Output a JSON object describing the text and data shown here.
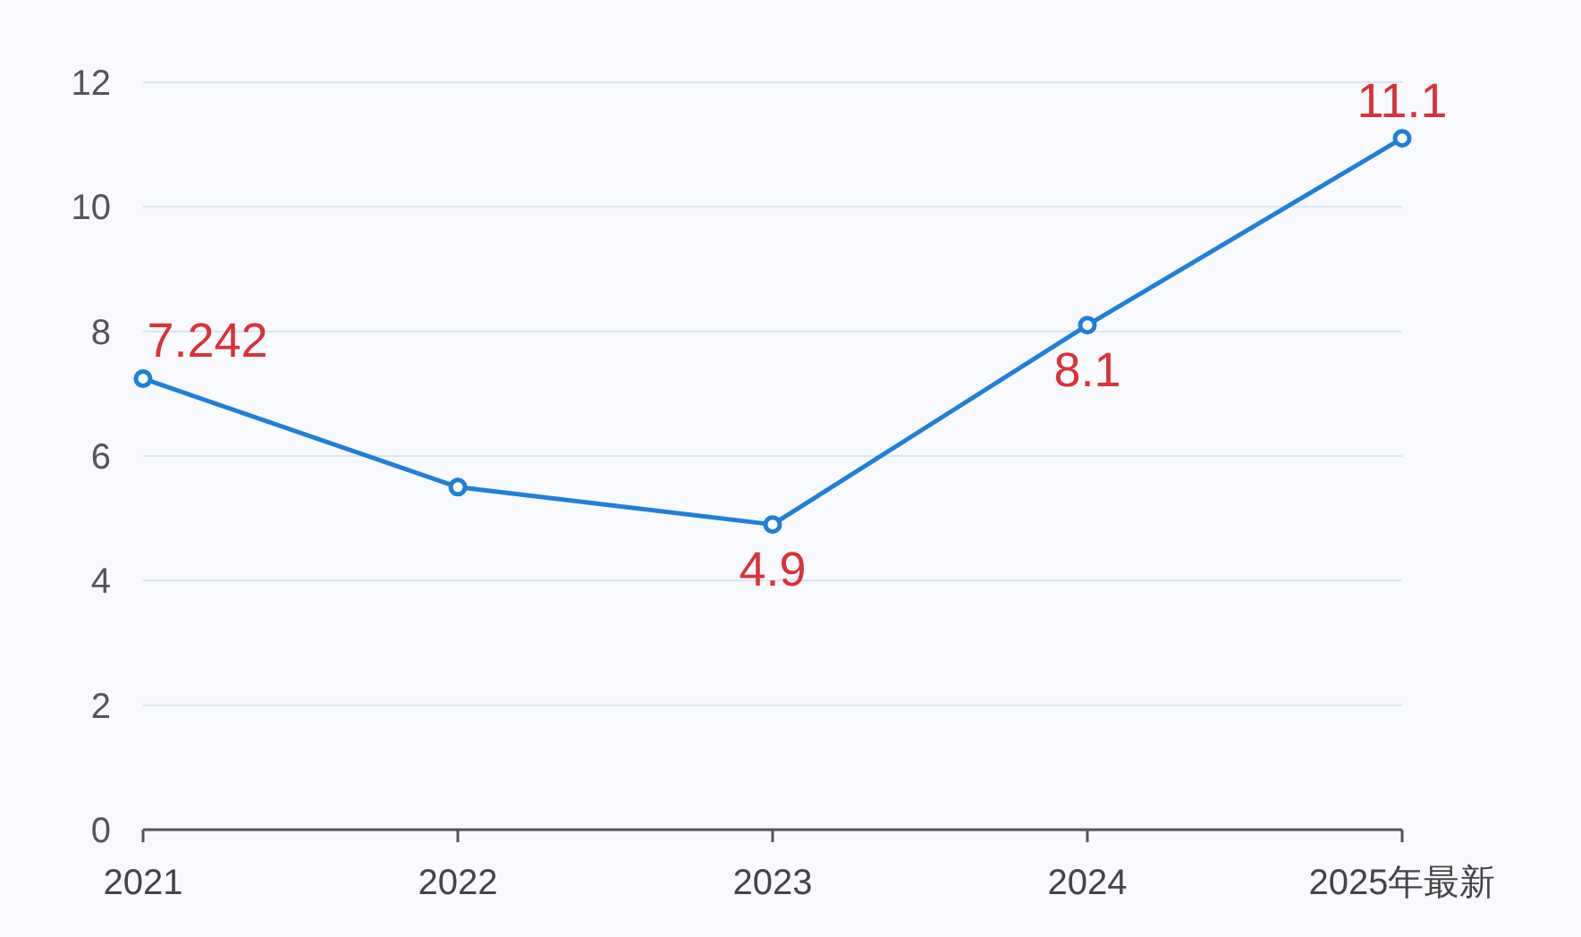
{
  "chart_data": {
    "type": "line",
    "categories": [
      "2021",
      "2022",
      "2023",
      "2024",
      "2025年最新"
    ],
    "series": [
      {
        "color": "#1f7fd9",
        "values": [
          7.242,
          5.5,
          4.9,
          8.1,
          11.1
        ],
        "value_labels": [
          "7.242",
          null,
          "4.9",
          "8.1",
          "11.1"
        ]
      }
    ],
    "ylim": [
      0,
      12
    ],
    "yticks": [
      0,
      2,
      4,
      6,
      8,
      10,
      12
    ],
    "grid": "y",
    "marker": "circle",
    "line_style": "solid"
  }
}
